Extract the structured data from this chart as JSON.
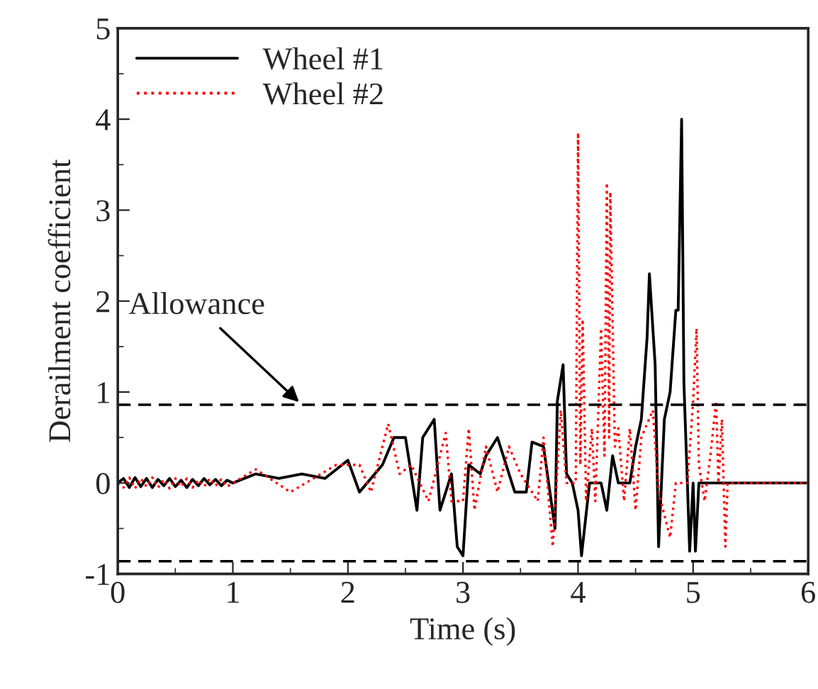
{
  "chart_data": {
    "type": "line",
    "xlabel": "Time (s)",
    "ylabel": "Derailment coefficient",
    "xlim": [
      0,
      6
    ],
    "ylim": [
      -1,
      5
    ],
    "xticks": [
      0,
      1,
      2,
      3,
      4,
      5,
      6
    ],
    "yticks": [
      -1,
      0,
      1,
      2,
      3,
      4,
      5
    ],
    "legend": "top left",
    "grid": false,
    "series": [
      {
        "name": "Wheel #1",
        "color": "#000000",
        "line_style": "solid",
        "x": [
          0,
          0.05,
          0.1,
          0.15,
          0.2,
          0.25,
          0.3,
          0.35,
          0.4,
          0.45,
          0.5,
          0.55,
          0.6,
          0.65,
          0.7,
          0.75,
          0.8,
          0.85,
          0.9,
          0.95,
          1.0,
          1.2,
          1.4,
          1.6,
          1.8,
          2.0,
          2.1,
          2.3,
          2.4,
          2.5,
          2.6,
          2.65,
          2.75,
          2.8,
          2.9,
          2.95,
          3.0,
          3.05,
          3.15,
          3.2,
          3.3,
          3.35,
          3.45,
          3.55,
          3.6,
          3.7,
          3.8,
          3.82,
          3.87,
          3.9,
          3.95,
          4.0,
          4.03,
          4.1,
          4.2,
          4.25,
          4.3,
          4.35,
          4.45,
          4.5,
          4.55,
          4.6,
          4.62,
          4.67,
          4.7,
          4.75,
          4.8,
          4.85,
          4.87,
          4.9,
          4.92,
          4.95,
          4.97,
          5.0,
          5.02,
          5.05,
          6.0
        ],
        "values": [
          0,
          0.05,
          -0.05,
          0.06,
          -0.04,
          0.05,
          -0.05,
          0.04,
          -0.03,
          0.05,
          -0.04,
          0.03,
          -0.05,
          0.04,
          -0.03,
          0.05,
          -0.02,
          0.04,
          -0.03,
          0.03,
          0,
          0.1,
          0.05,
          0.1,
          0.05,
          0.25,
          -0.1,
          0.2,
          0.5,
          0.5,
          -0.3,
          0.5,
          0.7,
          -0.3,
          0.1,
          -0.7,
          -0.8,
          0.2,
          0.1,
          0.3,
          0.5,
          0.3,
          -0.1,
          -0.1,
          0.45,
          0.4,
          -0.5,
          0.9,
          1.3,
          0.1,
          0,
          -0.3,
          -0.8,
          0,
          0,
          -0.3,
          0.3,
          0,
          0,
          0.4,
          0.7,
          1.6,
          2.3,
          1.3,
          -0.7,
          0.7,
          1.0,
          1.9,
          1.9,
          4.0,
          1.1,
          0,
          -0.75,
          0,
          -0.75,
          0,
          0
        ]
      },
      {
        "name": "Wheel #2",
        "color": "#ff0000",
        "line_style": "dotted",
        "x": [
          0,
          0.05,
          0.1,
          0.15,
          0.2,
          0.25,
          0.3,
          0.35,
          0.4,
          0.45,
          0.5,
          0.55,
          0.6,
          0.65,
          0.7,
          0.75,
          0.8,
          0.85,
          0.9,
          0.95,
          1.0,
          1.2,
          1.5,
          1.9,
          2.1,
          2.2,
          2.35,
          2.45,
          2.55,
          2.7,
          2.85,
          2.9,
          3.0,
          3.05,
          3.1,
          3.2,
          3.3,
          3.4,
          3.5,
          3.65,
          3.7,
          3.78,
          3.85,
          3.9,
          3.98,
          4.0,
          4.02,
          4.04,
          4.07,
          4.12,
          4.15,
          4.2,
          4.23,
          4.25,
          4.27,
          4.28,
          4.32,
          4.35,
          4.4,
          4.45,
          4.5,
          4.55,
          4.65,
          4.7,
          4.75,
          4.8,
          4.85,
          4.95,
          5.0,
          5.03,
          5.05,
          5.1,
          5.15,
          5.2,
          5.22,
          5.25,
          5.28,
          5.3,
          6.0
        ],
        "values": [
          0,
          -0.05,
          0.06,
          -0.06,
          0.05,
          -0.04,
          0.06,
          -0.05,
          0.04,
          -0.06,
          0.05,
          -0.04,
          0.05,
          -0.05,
          0.03,
          -0.04,
          0.05,
          -0.03,
          0.04,
          -0.04,
          0,
          0.15,
          -0.1,
          0.2,
          0.2,
          -0.1,
          0.65,
          0.1,
          0.2,
          -0.2,
          0.55,
          -0.2,
          -0.2,
          0.6,
          -0.3,
          0.4,
          -0.1,
          0.4,
          0.1,
          -0.2,
          0.5,
          -0.7,
          0.8,
          0,
          0,
          3.85,
          0.2,
          1.8,
          -0.2,
          0.6,
          -0.2,
          1.7,
          0.3,
          3.3,
          0.5,
          3.2,
          0.4,
          0.6,
          -0.2,
          0.6,
          -0.3,
          0.5,
          0.8,
          -0.1,
          -0.35,
          -0.6,
          0,
          0,
          0.9,
          1.7,
          0.2,
          -0.2,
          0.3,
          0.9,
          0,
          0.7,
          -0.7,
          0,
          0
        ]
      }
    ],
    "ref_lines": [
      {
        "axis": "y",
        "value": 0.86,
        "line_style": "dashed",
        "color": "#000000"
      },
      {
        "axis": "y",
        "value": -0.86,
        "line_style": "dashed",
        "color": "#000000"
      }
    ],
    "annotations": [
      {
        "text": "Allowance",
        "x": 1.6,
        "y": 0.86
      }
    ]
  }
}
